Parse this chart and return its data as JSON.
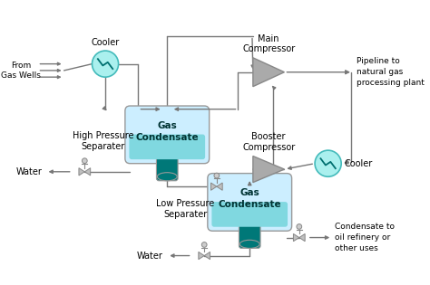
{
  "background_color": "#ffffff",
  "fig_width": 4.74,
  "fig_height": 3.15,
  "dpi": 100,
  "labels": {
    "from_gas_wells": "From\nGas Wells",
    "cooler_top": "Cooler",
    "high_pressure_sep": "High Pressure\nSeparater",
    "gas_condensate_top": "Gas\nCondensate",
    "water_left": "Water",
    "low_pressure_sep": "Low Pressure\nSeparater",
    "gas_condensate_bot": "Gas\nCondensate",
    "water_bot": "Water",
    "main_compressor": "Main\nCompressor",
    "pipeline": "Pipeline to\nnatural gas\nprocessing plant",
    "booster_compressor": "Booster\nCompressor",
    "cooler_right": "Cooler",
    "condensate_out": "Condensate to\noil refinery or\nother uses"
  },
  "colors": {
    "sep_body": "#cceeff",
    "sep_liquid": "#80d8e0",
    "sep_nozzle": "#007878",
    "sep_border": "#999999",
    "cooler_fill": "#aaf0ee",
    "cooler_border": "#44bbbb",
    "compressor_fill": "#aaaaaa",
    "compressor_border": "#888888",
    "line_color": "#777777",
    "valve_color": "#aaaaaa",
    "text_color": "#000000",
    "bg": "#ffffff"
  }
}
